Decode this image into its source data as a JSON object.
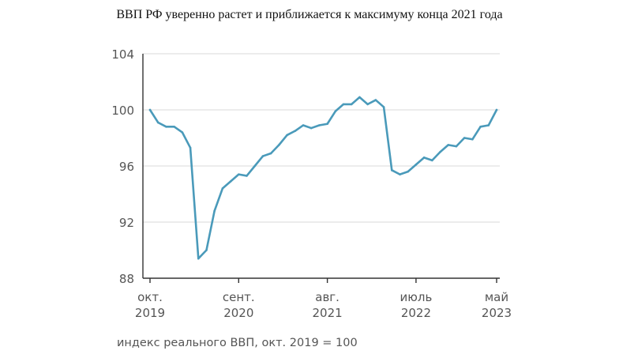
{
  "chart_data": {
    "type": "line",
    "title": "ВВП РФ уверенно растет и приближается к максимуму конца 2021 года",
    "subtitle": "",
    "xlabel": "",
    "ylabel": "",
    "caption": "индекс реального ВВП, окт. 2019 = 100",
    "ylim": [
      88,
      104
    ],
    "yticks": [
      88,
      92,
      96,
      100,
      104
    ],
    "grid": "horizontal",
    "colors": {
      "line": "#4a9aba",
      "grid": "#d9d9d9",
      "axis": "#333333"
    },
    "x_ticks": [
      {
        "index": 0,
        "line1": "окт.",
        "line2": "2019"
      },
      {
        "index": 11,
        "line1": "сент.",
        "line2": "2020"
      },
      {
        "index": 22,
        "line1": "авг.",
        "line2": "2021"
      },
      {
        "index": 33,
        "line1": "июль",
        "line2": "2022"
      },
      {
        "index": 43,
        "line1": "май",
        "line2": "2023"
      }
    ],
    "series": [
      {
        "x_first": "2019-10",
        "x_last": "2023-05",
        "frequency": "monthly",
        "values": [
          100.0,
          99.1,
          98.8,
          98.8,
          98.4,
          97.3,
          89.4,
          90.0,
          92.8,
          94.4,
          94.9,
          95.4,
          95.3,
          96.0,
          96.7,
          96.9,
          97.5,
          98.2,
          98.5,
          98.9,
          98.7,
          98.9,
          99.0,
          99.9,
          100.4,
          100.4,
          100.9,
          100.4,
          100.7,
          100.2,
          95.7,
          95.4,
          95.6,
          96.1,
          96.6,
          96.4,
          97.0,
          97.5,
          97.4,
          98.0,
          97.9,
          98.8,
          98.9,
          100.0
        ]
      }
    ]
  }
}
